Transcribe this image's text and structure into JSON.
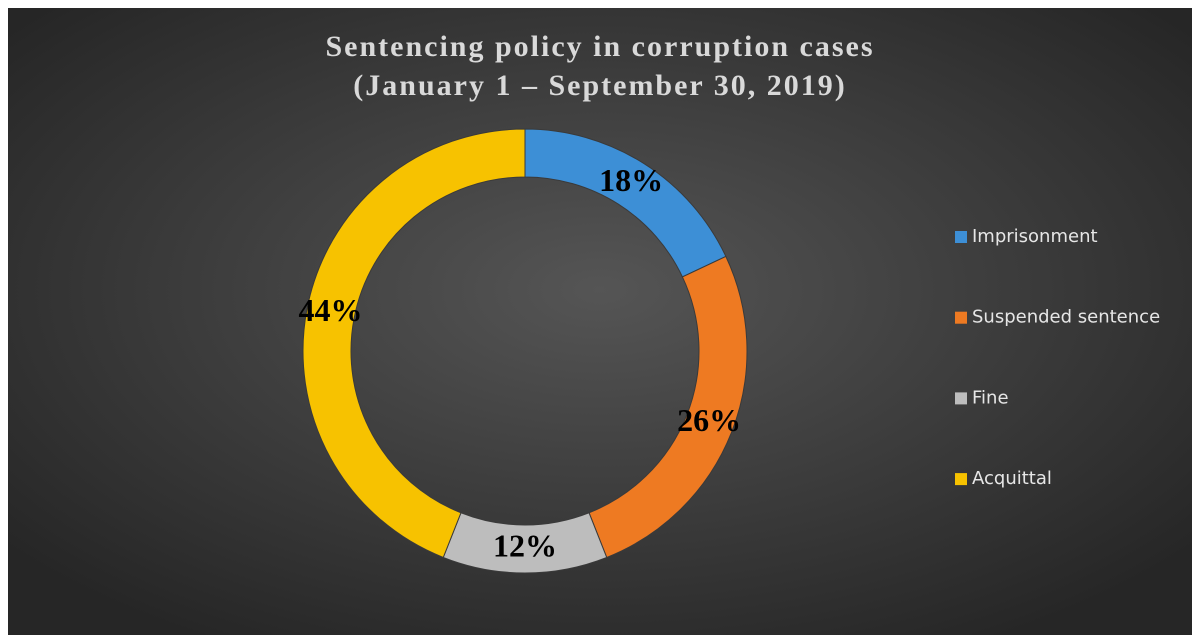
{
  "chart_data": {
    "type": "donut",
    "title": "Sentencing policy in corruption cases",
    "subtitle": "(January 1 – September 30, 2019)",
    "categories": [
      "Imprisonment",
      "Suspended sentence",
      "Fine",
      "Acquittal"
    ],
    "values": [
      18,
      26,
      12,
      44
    ],
    "value_labels": [
      "18%",
      "26%",
      "12%",
      "44%"
    ],
    "colors": [
      "#3d8fd6",
      "#ee7a22",
      "#bdbdbd",
      "#f7c200"
    ],
    "legend": "right"
  }
}
